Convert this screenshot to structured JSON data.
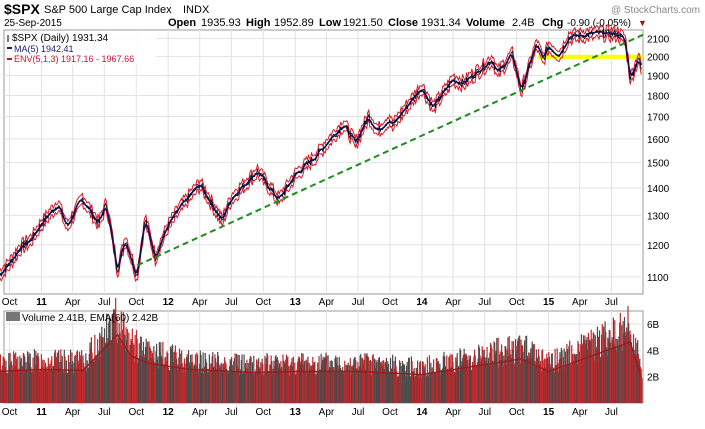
{
  "header": {
    "symbol": "$SPX",
    "name": "S&P 500 Large Cap Index",
    "exchange": "INDX",
    "date": "25-Sep-2015",
    "open_label": "Open",
    "open": "1935.93",
    "high_label": "High",
    "high": "1952.89",
    "low_label": "Low",
    "low": "1921.50",
    "close_label": "Close",
    "close": "1931.34",
    "volume_label": "Volume",
    "volume": "2.4B",
    "chg_label": "Chg",
    "chg": "-0.90 (-0.05%)",
    "chg_arrow": "▼",
    "watermark": "@ StockCharts.com"
  },
  "price_legend": [
    {
      "text": "$SPX (Daily) 1931.34",
      "swatch": "candles",
      "color": "#000000"
    },
    {
      "text": "MA(5) 1942.41",
      "color": "#1a1a6e"
    },
    {
      "text": "ENV(5,1,3) 1917.16 - 1967.66",
      "color": "#cc1133"
    }
  ],
  "volume_legend": {
    "text": "Volume 2.41B, EMA(60) 2.42B"
  },
  "colors": {
    "price": "#101050",
    "envelope": "#d11a2a",
    "trendline": "#1e8c1e",
    "highlight": "#ffff00",
    "volume_up": "#4a4a4a",
    "volume_down": "#c0282c",
    "ema": "#9a1a1a",
    "grid": "#e2e2e2",
    "chg": "#c00000"
  },
  "chart_data": [
    {
      "type": "line",
      "title": "$SPX (Daily) 1931.34",
      "x_ticks": [
        "Oct",
        "11",
        "Apr",
        "Jul",
        "Oct",
        "12",
        "Apr",
        "Jul",
        "Oct",
        "13",
        "Apr",
        "Jul",
        "Oct",
        "14",
        "Apr",
        "Jul",
        "Oct",
        "15",
        "Apr",
        "Jul"
      ],
      "y_ticks": [
        1100,
        1200,
        1300,
        1400,
        1500,
        1600,
        1700,
        1800,
        1900,
        2000,
        2100
      ],
      "y_scale": "log",
      "ylim": [
        1050,
        2150
      ],
      "series": [
        {
          "name": "$SPX (Daily) 1931.34",
          "x": [
            "2010-09-01",
            "2010-10-01",
            "2010-11-01",
            "2010-12-01",
            "2011-01-01",
            "2011-02-18",
            "2011-03-16",
            "2011-04-29",
            "2011-06-15",
            "2011-07-07",
            "2011-08-08",
            "2011-08-31",
            "2011-10-03",
            "2011-10-27",
            "2011-11-25",
            "2011-12-30",
            "2012-02-01",
            "2012-04-02",
            "2012-06-04",
            "2012-07-01",
            "2012-09-14",
            "2012-11-15",
            "2013-01-02",
            "2013-03-01",
            "2013-05-21",
            "2013-06-24",
            "2013-08-01",
            "2013-08-27",
            "2013-10-01",
            "2013-10-08",
            "2014-01-01",
            "2014-02-03",
            "2014-04-01",
            "2014-05-01",
            "2014-07-24",
            "2014-08-07",
            "2014-09-19",
            "2014-10-15",
            "2014-11-28",
            "2014-12-16",
            "2015-01-01",
            "2015-02-02",
            "2015-03-01",
            "2015-05-21",
            "2015-07-20",
            "2015-08-10",
            "2015-08-25",
            "2015-09-17",
            "2015-09-25"
          ],
          "values": [
            1105,
            1140,
            1190,
            1215,
            1270,
            1340,
            1260,
            1360,
            1270,
            1340,
            1120,
            1220,
            1100,
            1285,
            1160,
            1258,
            1320,
            1415,
            1280,
            1360,
            1465,
            1355,
            1450,
            1525,
            1665,
            1580,
            1700,
            1635,
            1690,
            1655,
            1840,
            1740,
            1880,
            1860,
            1985,
            1910,
            2010,
            1820,
            2070,
            1980,
            2058,
            2010,
            2110,
            2130,
            2128,
            2090,
            1880,
            1995,
            1931
          ]
        },
        {
          "name": "MA(5) 1942.41",
          "values_ref": "smoothed price"
        },
        {
          "name": "ENV(5,1,3) 1917.16 - 1967.66",
          "band_pct": [
            -1.3,
            1.3
          ]
        }
      ],
      "annotations": [
        {
          "type": "trendline",
          "from": [
            "2011-10-04",
            1135
          ],
          "to": [
            "2015-09-30",
            2122
          ]
        },
        {
          "type": "highlight-band",
          "from": [
            "2014-12-01",
            1990
          ],
          "to": [
            "2015-09-30",
            2010
          ]
        }
      ]
    },
    {
      "type": "bar",
      "title": "Volume 2.41B, EMA(60) 2.42B",
      "y_ticks": [
        "2B",
        "4B",
        "6B"
      ],
      "ylim": [
        0,
        7
      ],
      "x_ticks": [
        "Oct",
        "11",
        "Apr",
        "Jul",
        "Oct",
        "12",
        "Apr",
        "Jul",
        "Oct",
        "13",
        "Apr",
        "Jul",
        "Oct",
        "14",
        "Apr",
        "Jul",
        "Oct",
        "15",
        "Apr",
        "Jul"
      ],
      "volume_keyframes_B": [
        [
          "2010-09-01",
          3.0
        ],
        [
          "2011-01-01",
          3.2
        ],
        [
          "2011-05-01",
          3.1
        ],
        [
          "2011-08-08",
          6.5
        ],
        [
          "2011-09-15",
          4.5
        ],
        [
          "2011-11-01",
          3.8
        ],
        [
          "2012-03-01",
          3.2
        ],
        [
          "2012-09-01",
          2.9
        ],
        [
          "2013-01-01",
          3.0
        ],
        [
          "2013-07-01",
          3.0
        ],
        [
          "2014-01-01",
          2.7
        ],
        [
          "2014-10-15",
          4.2
        ],
        [
          "2015-01-01",
          3.0
        ],
        [
          "2015-08-24",
          5.8
        ],
        [
          "2015-09-25",
          2.41
        ]
      ],
      "ema_B": 2.42
    }
  ]
}
